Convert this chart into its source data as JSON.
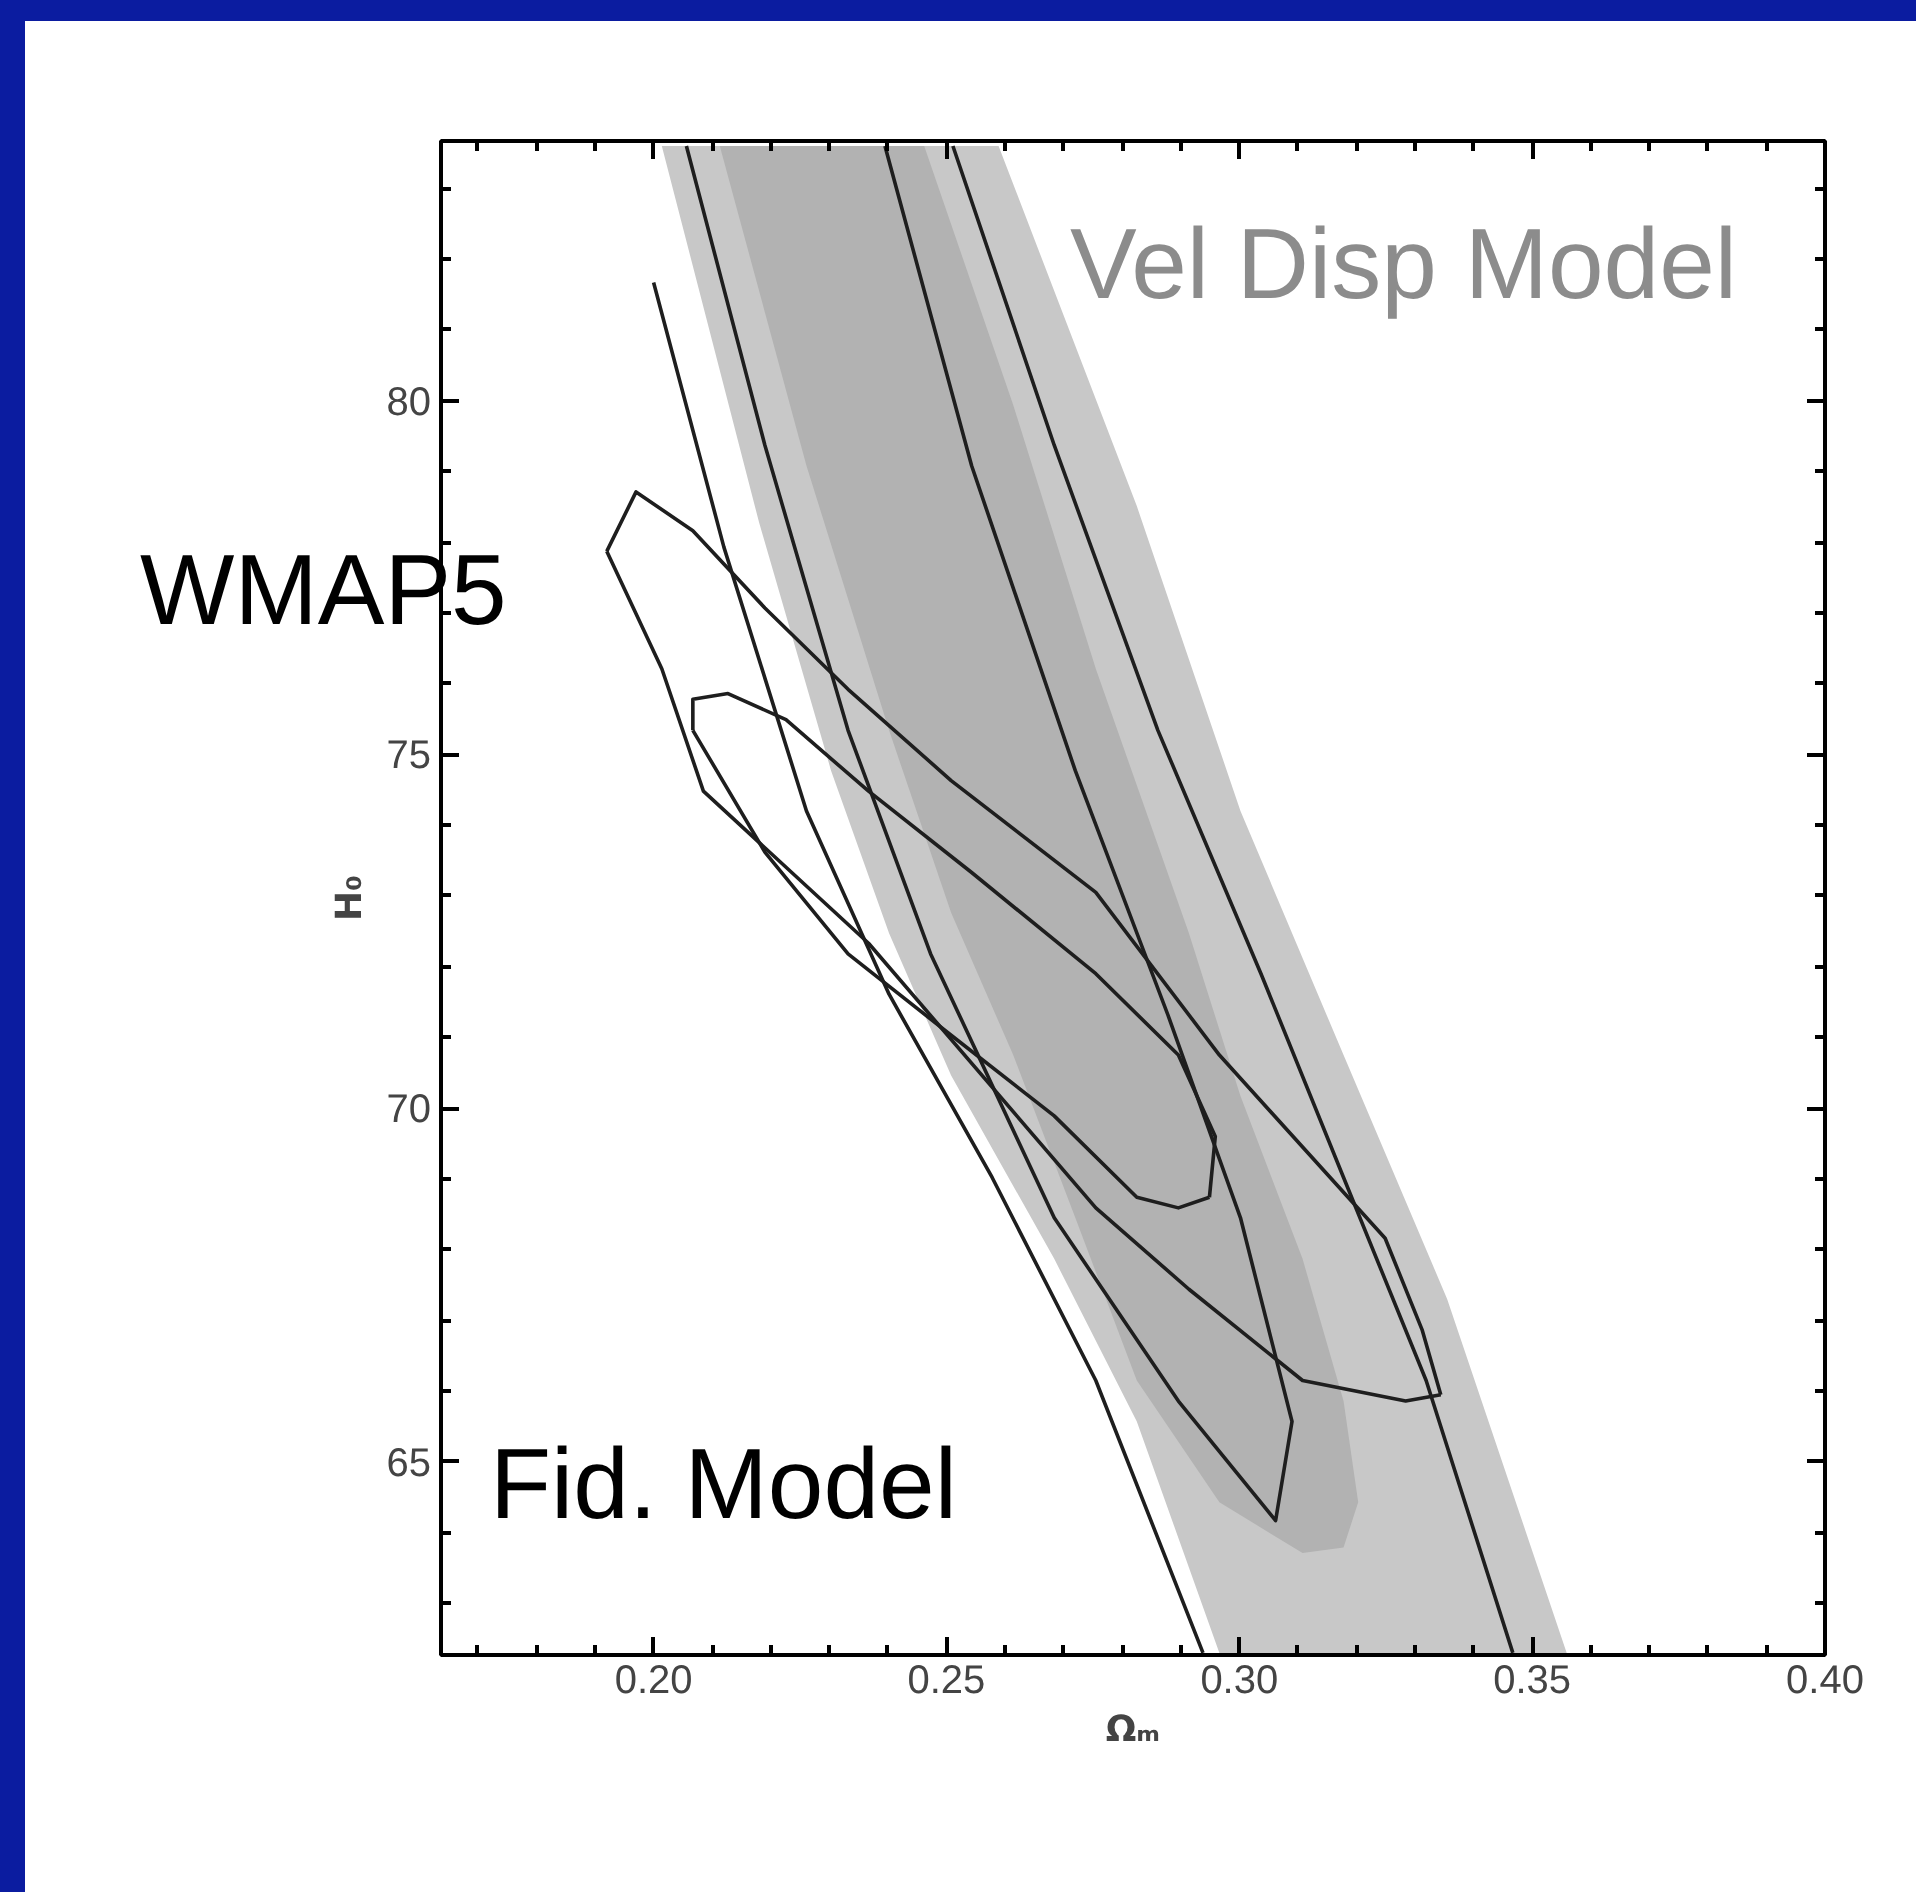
{
  "chart_data": {
    "type": "line",
    "xlabel": "Ωₘ",
    "ylabel": "H₀",
    "xlim": [
      0.1637,
      0.4
    ],
    "ylim": [
      62.27,
      83.67
    ],
    "xticks": [
      {
        "value": 0.17,
        "label": null
      },
      {
        "value": 0.18,
        "label": null
      },
      {
        "value": 0.19,
        "label": null
      },
      {
        "value": 0.2,
        "label": "0.20"
      },
      {
        "value": 0.21,
        "label": null
      },
      {
        "value": 0.22,
        "label": null
      },
      {
        "value": 0.23,
        "label": null
      },
      {
        "value": 0.24,
        "label": null
      },
      {
        "value": 0.25,
        "label": "0.25"
      },
      {
        "value": 0.26,
        "label": null
      },
      {
        "value": 0.27,
        "label": null
      },
      {
        "value": 0.28,
        "label": null
      },
      {
        "value": 0.29,
        "label": null
      },
      {
        "value": 0.3,
        "label": "0.30"
      },
      {
        "value": 0.31,
        "label": null
      },
      {
        "value": 0.32,
        "label": null
      },
      {
        "value": 0.33,
        "label": null
      },
      {
        "value": 0.34,
        "label": null
      },
      {
        "value": 0.35,
        "label": "0.35"
      },
      {
        "value": 0.36,
        "label": null
      },
      {
        "value": 0.37,
        "label": null
      },
      {
        "value": 0.38,
        "label": null
      },
      {
        "value": 0.39,
        "label": null
      },
      {
        "value": 0.4,
        "label": "0.40"
      }
    ],
    "yticks": [
      {
        "value": 63,
        "label": null
      },
      {
        "value": 64,
        "label": null
      },
      65,
      {
        "value": 66,
        "label": null
      },
      {
        "value": 67,
        "label": null
      },
      {
        "value": 68,
        "label": null
      },
      {
        "value": 69,
        "label": null
      },
      70,
      {
        "value": 71,
        "label": null
      },
      {
        "value": 72,
        "label": null
      },
      {
        "value": 73,
        "label": null
      },
      {
        "value": 74,
        "label": null
      },
      75,
      {
        "value": 76,
        "label": null
      },
      {
        "value": 77,
        "label": null
      },
      {
        "value": 78,
        "label": null
      },
      {
        "value": 79,
        "label": null
      },
      80,
      {
        "value": 81,
        "label": null
      },
      {
        "value": 82,
        "label": null
      },
      {
        "value": 83,
        "label": null
      }
    ],
    "grid": false,
    "marker": "none",
    "line_style": "solid",
    "series": [
      {
        "type": "area",
        "color": "#c8c8c8",
        "x": [
          0.2014,
          0.218,
          0.2303,
          0.2402,
          0.2508,
          0.2684,
          0.2825,
          0.2966,
          0.3559,
          0.3355,
          0.3178,
          0.3002,
          0.2825,
          0.2589
        ],
        "values": [
          83.6,
          78.28,
          74.77,
          72.47,
          70.46,
          67.87,
          65.57,
          62.3,
          62.3,
          67.3,
          70.75,
          74.2,
          78.51,
          83.6
        ]
      },
      {
        "type": "area",
        "color": "#b2b2b2",
        "x": [
          0.2113,
          0.2261,
          0.2402,
          0.2508,
          0.2614,
          0.272,
          0.2825,
          0.2966,
          0.3108,
          0.3178,
          0.3203,
          0.3178,
          0.3108,
          0.3002,
          0.2914,
          0.2755,
          0.2614,
          0.2462
        ],
        "values": [
          83.6,
          79.08,
          75.34,
          72.76,
          70.75,
          68.45,
          66.15,
          64.43,
          63.71,
          63.79,
          64.43,
          65.86,
          67.87,
          70.17,
          72.47,
          76.21,
          79.94,
          83.6
        ]
      },
      {
        "color": "#1e1e1e",
        "x": [
          0.2056,
          0.219,
          0.2332,
          0.2473,
          0.2684,
          0.2896,
          0.3062,
          0.309,
          0.3002,
          0.2878,
          0.272,
          0.2543,
          0.2395
        ],
        "values": [
          83.6,
          79.37,
          75.34,
          72.18,
          68.45,
          65.86,
          64.17,
          65.57,
          68.45,
          71.32,
          74.77,
          79.08,
          83.6
        ]
      },
      {
        "color": "#1e1e1e",
        "x": [
          0.2,
          0.212,
          0.2261,
          0.2402,
          0.2578,
          0.2755,
          0.2938
        ],
        "values": [
          81.67,
          77.93,
          74.2,
          71.61,
          69.02,
          66.15,
          62.3
        ]
      },
      {
        "color": "#1e1e1e",
        "x": [
          0.2511,
          0.2684,
          0.2861,
          0.3037,
          0.3178,
          0.3319,
          0.3467
        ],
        "values": [
          83.6,
          79.37,
          75.34,
          71.9,
          69.02,
          66.15,
          62.3
        ]
      },
      {
        "color": "#1e1e1e",
        "x": [
          0.192,
          0.197,
          0.2067,
          0.219,
          0.2332,
          0.2508,
          0.2755,
          0.2966,
          0.3249,
          0.3312,
          0.3344
        ],
        "values": [
          77.87,
          78.71,
          78.16,
          77.07,
          75.92,
          74.63,
          73.05,
          70.75,
          68.16,
          66.87,
          65.95
        ]
      },
      {
        "color": "#1e1e1e",
        "x": [
          0.192,
          0.2014,
          0.2085,
          0.2367,
          0.2755,
          0.2914,
          0.3108,
          0.3284,
          0.3344
        ],
        "values": [
          77.87,
          76.21,
          74.48,
          72.33,
          68.59,
          67.44,
          66.15,
          65.86,
          65.95
        ]
      },
      {
        "color": "#1e1e1e",
        "x": [
          0.2067,
          0.2067,
          0.2127,
          0.2226,
          0.2367,
          0.2543,
          0.2755,
          0.2896,
          0.2959,
          0.2949
        ],
        "values": [
          75.34,
          75.78,
          75.86,
          75.49,
          74.48,
          73.33,
          71.9,
          70.75,
          69.6,
          68.74
        ]
      },
      {
        "color": "#1e1e1e",
        "x": [
          0.2067,
          0.219,
          0.2332,
          0.2508,
          0.2684,
          0.2825,
          0.2896,
          0.2949
        ],
        "values": [
          75.34,
          73.62,
          72.18,
          71.03,
          69.89,
          68.74,
          68.59,
          68.74
        ]
      }
    ],
    "annotations": [
      "Vel Disp Model",
      "WMAP5",
      "Fid. Model"
    ]
  }
}
